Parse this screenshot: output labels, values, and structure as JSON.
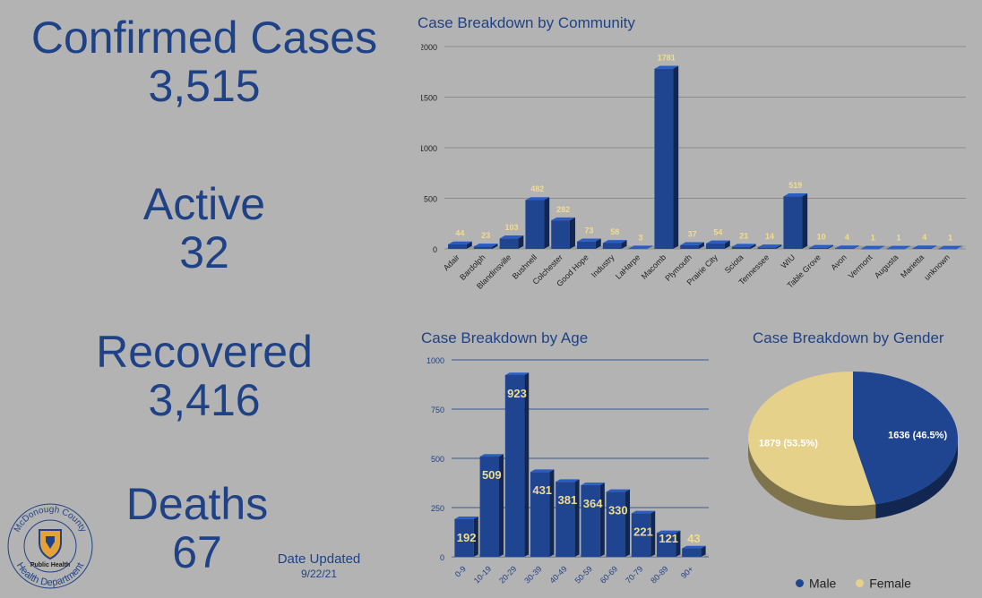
{
  "stats": {
    "confirmed": {
      "label": "Confirmed Cases",
      "value": "3,515"
    },
    "active": {
      "label": "Active",
      "value": "32"
    },
    "recovered": {
      "label": "Recovered",
      "value": "3,416"
    },
    "deaths": {
      "label": "Deaths",
      "value": "67"
    }
  },
  "updated": {
    "label": "Date Updated",
    "date": "9/22/21"
  },
  "logo": {
    "name": "mcdonough-county-health-department-logo",
    "text_top": "McDonough County",
    "text_bottom": "Health Department",
    "text_center": "Public Health"
  },
  "colors": {
    "bar": "#1f4591",
    "male": "#1f4591",
    "female": "#e6d18a",
    "label_yellow": "#f2dc8c",
    "title": "#1f4287"
  },
  "chart_data": [
    {
      "type": "bar",
      "title": "Case Breakdown by Community",
      "categories": [
        "Adair",
        "Bardolph",
        "Blandinsville",
        "Bushnell",
        "Colchester",
        "Good Hope",
        "Industry",
        "LaHarpe",
        "Macomb",
        "Plymouth",
        "Prairie City",
        "Sciota",
        "Tennessee",
        "WIU",
        "Table Grove",
        "Avon",
        "Vermont",
        "Augusta",
        "Marietta",
        "unknown"
      ],
      "values": [
        44,
        23,
        103,
        482,
        282,
        73,
        58,
        3,
        1781,
        37,
        54,
        21,
        14,
        519,
        10,
        4,
        1,
        1,
        4,
        1
      ],
      "yticks": [
        0,
        500,
        1000,
        1500,
        2000
      ],
      "ylim": [
        0,
        2000
      ],
      "grid": true
    },
    {
      "type": "bar",
      "title": "Case Breakdown by Age",
      "categories": [
        "0-9",
        "10-19",
        "20-29",
        "30-39",
        "40-49",
        "50-59",
        "60-69",
        "70-79",
        "80-89",
        "90+"
      ],
      "values": [
        192,
        509,
        923,
        431,
        381,
        364,
        330,
        221,
        121,
        43
      ],
      "yticks": [
        0,
        250,
        500,
        750,
        1000
      ],
      "ylim": [
        0,
        1000
      ],
      "grid": true
    },
    {
      "type": "pie",
      "title": "Case Breakdown by Gender",
      "labels": [
        "Male",
        "Female"
      ],
      "values": [
        1636,
        1879
      ],
      "value_labels": [
        "1636 (46.5%)",
        "1879 (53.5%)"
      ],
      "legend": "bottom"
    }
  ]
}
